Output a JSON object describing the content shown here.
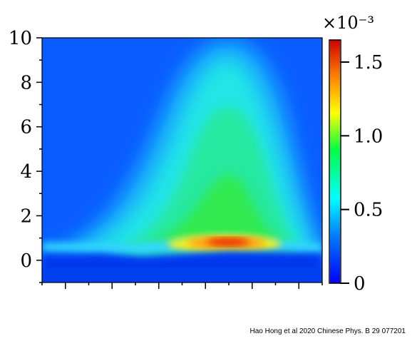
{
  "chart_data": {
    "type": "heatmap",
    "title": "",
    "xlabel": "",
    "ylabel": "",
    "ylim": [
      -1,
      10
    ],
    "y_ticks": [
      0,
      2,
      4,
      6,
      8,
      10
    ],
    "y_tick_labels": [
      "0",
      "2",
      "4",
      "6",
      "8",
      "10"
    ],
    "x_tick_count": 13,
    "x_tick_labels": [],
    "colormap": "jet",
    "colorbar": {
      "range": [
        0,
        1.65
      ],
      "ticks": [
        0,
        0.5,
        1.0,
        1.5
      ],
      "tick_labels": [
        "0",
        "0.5",
        "1.0",
        "1.5"
      ],
      "exponent_label": "×10⁻³"
    },
    "features": {
      "peak_value": 1.65,
      "peak_y": 0.8,
      "low_band_y": 0.3,
      "low_band_value": 0.05,
      "cone_apex_y": 10,
      "cone_apex_value": 0.4
    }
  },
  "credit": "Hao Hong et al 2020 Chinese Phys. B 29 077201"
}
